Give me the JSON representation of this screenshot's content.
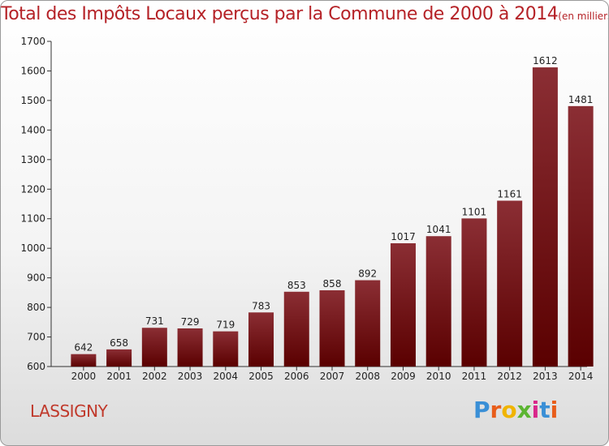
{
  "chart_data": {
    "type": "bar",
    "title": "Total des Impôts Locaux perçus par la Commune de 2000 à 2014",
    "subtitle": "(en milliers d'€)",
    "categories": [
      "2000",
      "2001",
      "2002",
      "2003",
      "2004",
      "2005",
      "2006",
      "2007",
      "2008",
      "2009",
      "2010",
      "2011",
      "2012",
      "2013",
      "2014"
    ],
    "values": [
      642,
      658,
      731,
      729,
      719,
      783,
      853,
      858,
      892,
      1017,
      1041,
      1101,
      1161,
      1612,
      1481
    ],
    "ylim": [
      600,
      1700
    ],
    "yticks": [
      600,
      700,
      800,
      900,
      1000,
      1100,
      1200,
      1300,
      1400,
      1500,
      1600,
      1700
    ],
    "xlabel": "",
    "ylabel": "",
    "grid": false,
    "bar_color_top": "#8b2e34",
    "bar_color_bottom": "#5a0000"
  },
  "footer": {
    "commune": "LASSIGNY",
    "brand_letters": [
      "P",
      "r",
      "o",
      "x",
      "i",
      "t",
      "i"
    ],
    "brand_colors": [
      "#3a8fd6",
      "#e85d1a",
      "#f0b400",
      "#5bb531",
      "#d9268a",
      "#3a8fd6",
      "#e85d1a"
    ]
  }
}
